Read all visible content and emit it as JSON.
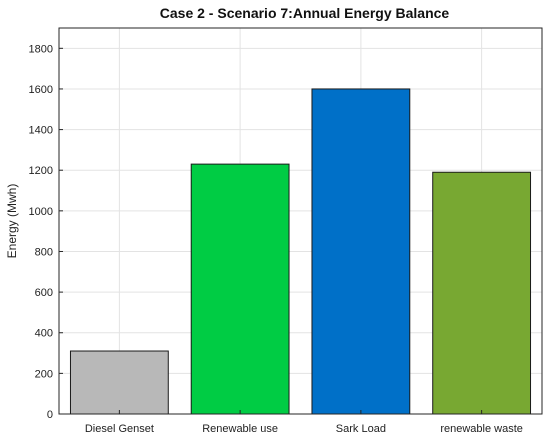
{
  "chart_data": {
    "type": "bar",
    "title": "Case 2 - Scenario 7:Annual Energy Balance",
    "xlabel": "",
    "ylabel": "Energy (Mwh)",
    "categories": [
      "Diesel Genset",
      "Renewable use",
      "Sark Load",
      "renewable waste"
    ],
    "values": [
      310,
      1230,
      1600,
      1190
    ],
    "colors": [
      "#b8b8b8",
      "#00cc44",
      "#0070c8",
      "#78a832"
    ],
    "ylim": [
      0,
      1900
    ],
    "yticks": [
      0,
      200,
      400,
      600,
      800,
      1000,
      1200,
      1400,
      1600,
      1800
    ],
    "grid": true,
    "legend": "none"
  }
}
